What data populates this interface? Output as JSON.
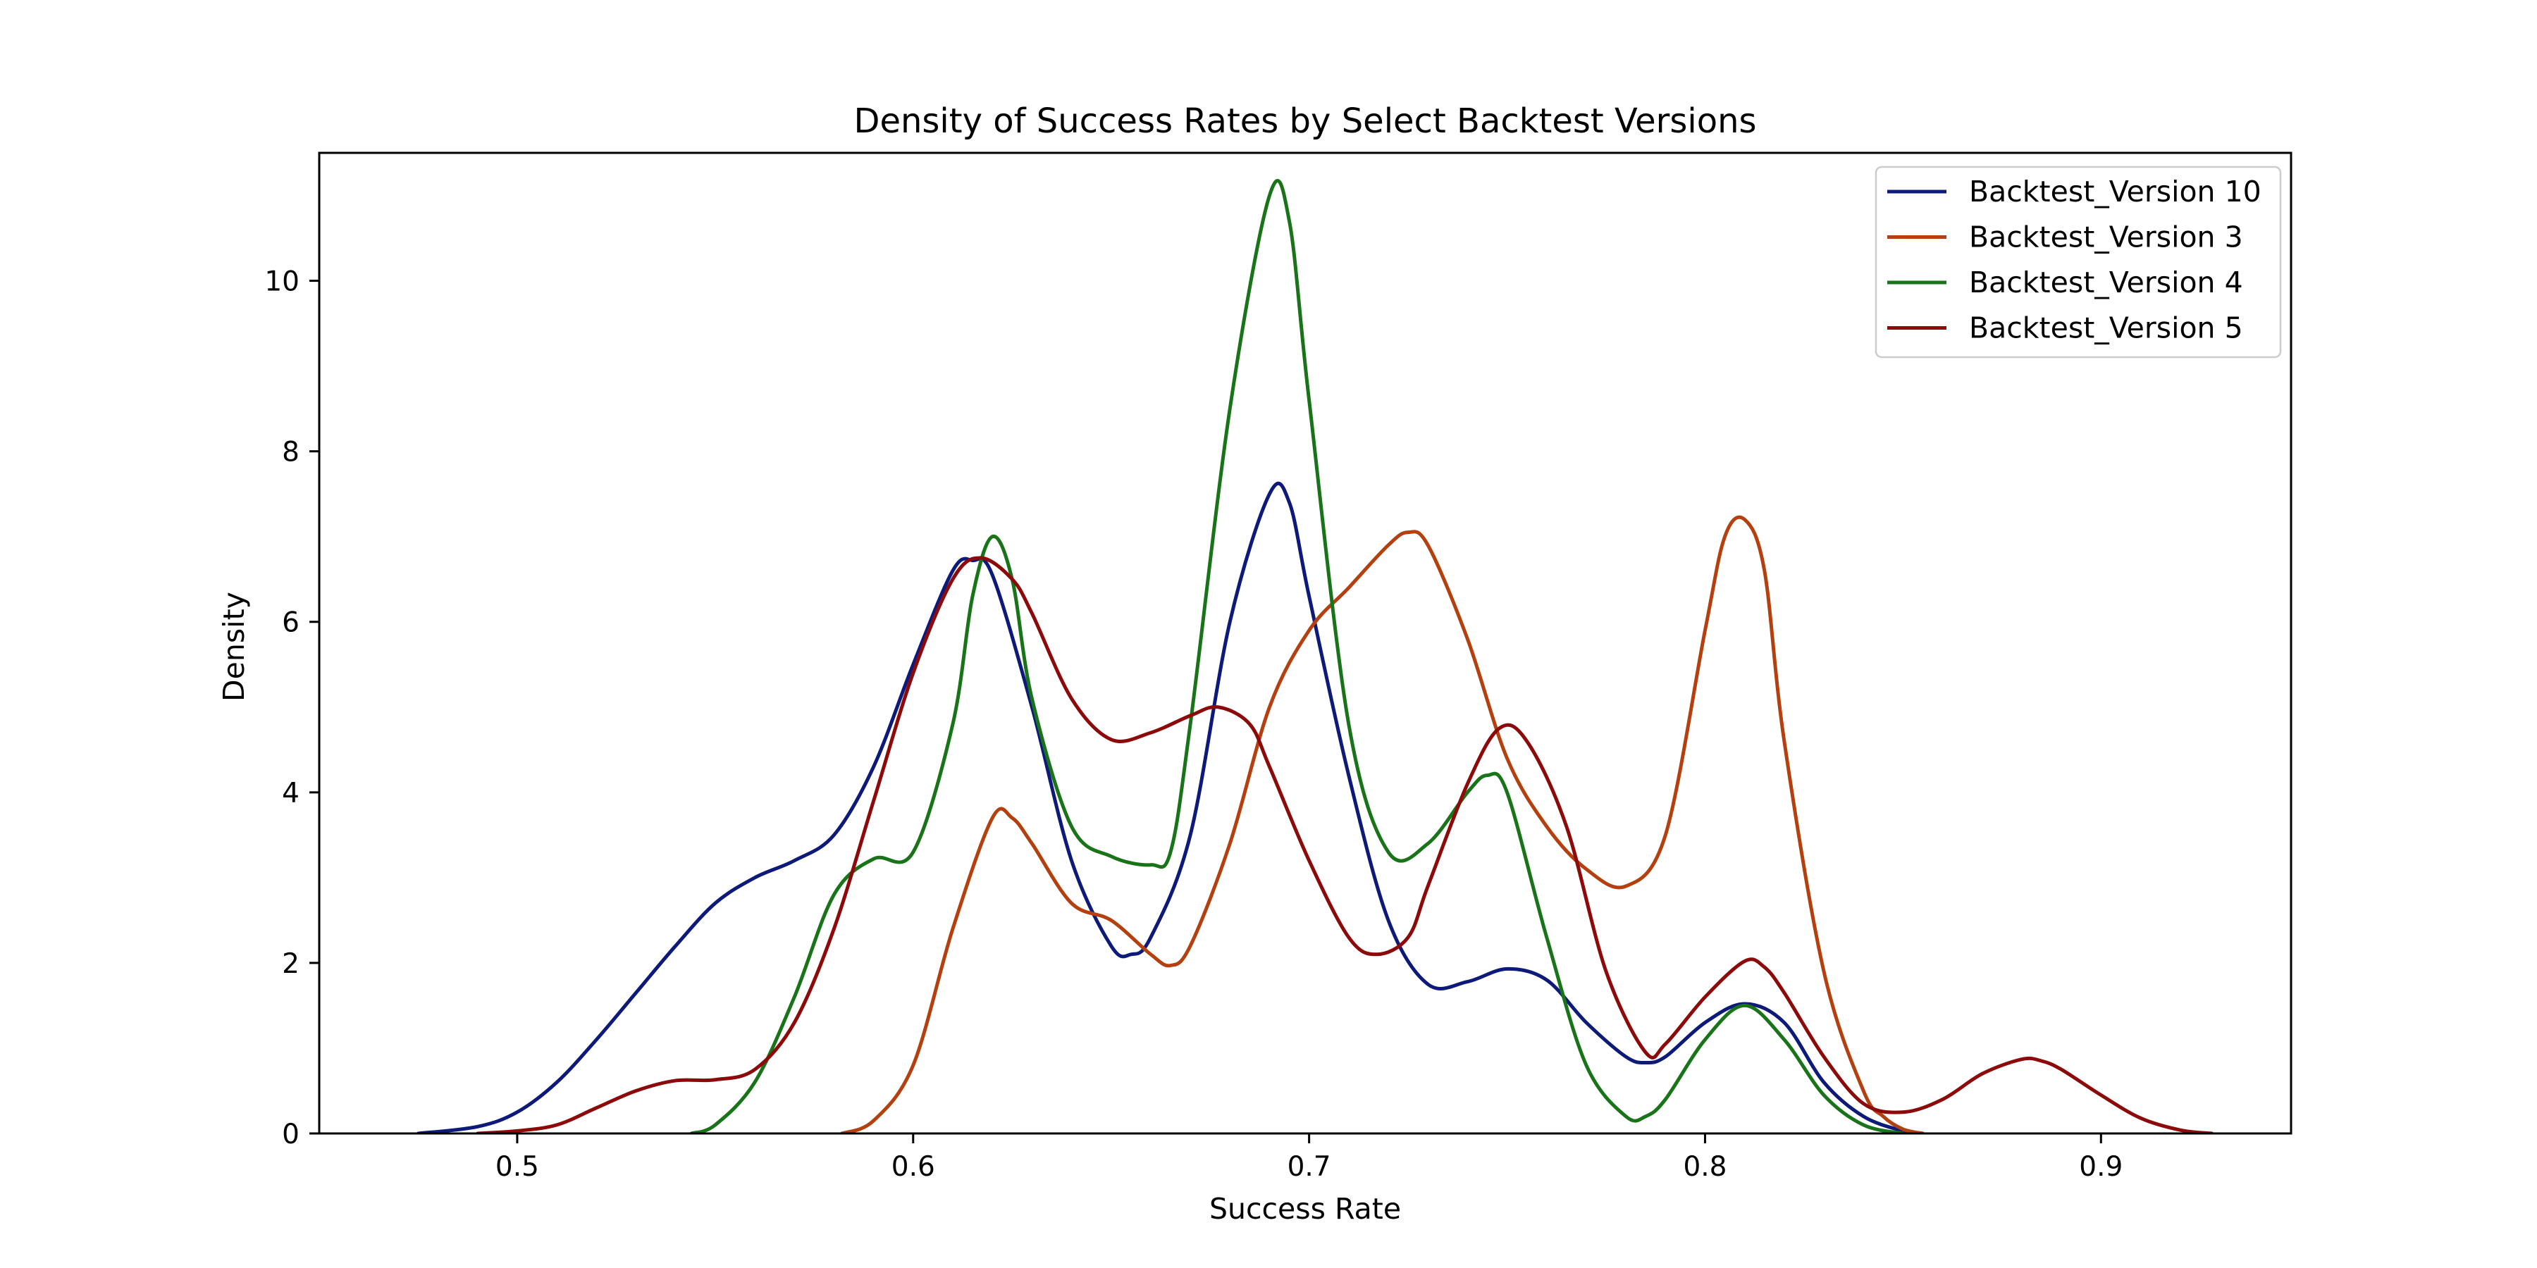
{
  "chart_data": {
    "type": "line",
    "title": "Density of Success Rates by Select Backtest Versions",
    "xlabel": "Success Rate",
    "ylabel": "Density",
    "xlim": [
      0.45,
      0.948
    ],
    "ylim": [
      0,
      11.5
    ],
    "x_ticks": [
      0.5,
      0.6,
      0.7,
      0.8,
      0.9
    ],
    "x_tick_labels": [
      "0.5",
      "0.6",
      "0.7",
      "0.8",
      "0.9"
    ],
    "y_ticks": [
      0,
      2,
      4,
      6,
      8,
      10
    ],
    "y_tick_labels": [
      "0",
      "2",
      "4",
      "6",
      "8",
      "10"
    ],
    "grid": false,
    "legend_position": "top-right",
    "series": [
      {
        "name": "Backtest_Version 10",
        "color": "#0d1a7a",
        "points": [
          [
            0.475,
            0
          ],
          [
            0.49,
            0.08
          ],
          [
            0.5,
            0.25
          ],
          [
            0.51,
            0.6
          ],
          [
            0.52,
            1.1
          ],
          [
            0.53,
            1.65
          ],
          [
            0.54,
            2.2
          ],
          [
            0.55,
            2.7
          ],
          [
            0.56,
            3.0
          ],
          [
            0.57,
            3.2
          ],
          [
            0.58,
            3.5
          ],
          [
            0.59,
            4.3
          ],
          [
            0.6,
            5.5
          ],
          [
            0.61,
            6.6
          ],
          [
            0.615,
            6.72
          ],
          [
            0.62,
            6.55
          ],
          [
            0.63,
            5.0
          ],
          [
            0.64,
            3.2
          ],
          [
            0.65,
            2.2
          ],
          [
            0.655,
            2.1
          ],
          [
            0.66,
            2.3
          ],
          [
            0.67,
            3.5
          ],
          [
            0.68,
            6.0
          ],
          [
            0.69,
            7.5
          ],
          [
            0.695,
            7.4
          ],
          [
            0.7,
            6.3
          ],
          [
            0.71,
            4.2
          ],
          [
            0.72,
            2.5
          ],
          [
            0.73,
            1.75
          ],
          [
            0.74,
            1.78
          ],
          [
            0.75,
            1.93
          ],
          [
            0.76,
            1.8
          ],
          [
            0.77,
            1.3
          ],
          [
            0.78,
            0.9
          ],
          [
            0.785,
            0.83
          ],
          [
            0.79,
            0.9
          ],
          [
            0.8,
            1.3
          ],
          [
            0.81,
            1.52
          ],
          [
            0.82,
            1.3
          ],
          [
            0.83,
            0.6
          ],
          [
            0.84,
            0.2
          ],
          [
            0.85,
            0.03
          ],
          [
            0.855,
            0
          ]
        ]
      },
      {
        "name": "Backtest_Version 3",
        "color": "#b5400f",
        "points": [
          [
            0.582,
            0
          ],
          [
            0.59,
            0.15
          ],
          [
            0.6,
            0.8
          ],
          [
            0.61,
            2.4
          ],
          [
            0.62,
            3.7
          ],
          [
            0.625,
            3.7
          ],
          [
            0.63,
            3.4
          ],
          [
            0.64,
            2.7
          ],
          [
            0.65,
            2.5
          ],
          [
            0.66,
            2.1
          ],
          [
            0.665,
            1.97
          ],
          [
            0.67,
            2.2
          ],
          [
            0.68,
            3.4
          ],
          [
            0.69,
            5.0
          ],
          [
            0.7,
            5.9
          ],
          [
            0.71,
            6.4
          ],
          [
            0.72,
            6.9
          ],
          [
            0.725,
            7.05
          ],
          [
            0.73,
            6.9
          ],
          [
            0.74,
            5.8
          ],
          [
            0.75,
            4.4
          ],
          [
            0.76,
            3.6
          ],
          [
            0.77,
            3.1
          ],
          [
            0.78,
            2.9
          ],
          [
            0.79,
            3.5
          ],
          [
            0.8,
            5.9
          ],
          [
            0.805,
            7.0
          ],
          [
            0.81,
            7.2
          ],
          [
            0.815,
            6.6
          ],
          [
            0.82,
            4.6
          ],
          [
            0.83,
            1.9
          ],
          [
            0.84,
            0.5
          ],
          [
            0.845,
            0.2
          ],
          [
            0.85,
            0.05
          ],
          [
            0.855,
            0
          ]
        ]
      },
      {
        "name": "Backtest_Version 4",
        "color": "#197419",
        "points": [
          [
            0.544,
            0
          ],
          [
            0.55,
            0.1
          ],
          [
            0.56,
            0.6
          ],
          [
            0.57,
            1.6
          ],
          [
            0.58,
            2.8
          ],
          [
            0.59,
            3.22
          ],
          [
            0.6,
            3.3
          ],
          [
            0.61,
            4.8
          ],
          [
            0.615,
            6.3
          ],
          [
            0.62,
            7.0
          ],
          [
            0.625,
            6.5
          ],
          [
            0.63,
            5.1
          ],
          [
            0.64,
            3.6
          ],
          [
            0.65,
            3.25
          ],
          [
            0.66,
            3.15
          ],
          [
            0.665,
            3.3
          ],
          [
            0.67,
            4.8
          ],
          [
            0.68,
            8.5
          ],
          [
            0.69,
            11.0
          ],
          [
            0.695,
            10.7
          ],
          [
            0.7,
            8.6
          ],
          [
            0.71,
            4.8
          ],
          [
            0.72,
            3.3
          ],
          [
            0.73,
            3.4
          ],
          [
            0.74,
            4.0
          ],
          [
            0.745,
            4.2
          ],
          [
            0.75,
            4.0
          ],
          [
            0.76,
            2.3
          ],
          [
            0.77,
            0.8
          ],
          [
            0.78,
            0.2
          ],
          [
            0.785,
            0.2
          ],
          [
            0.79,
            0.4
          ],
          [
            0.8,
            1.1
          ],
          [
            0.81,
            1.5
          ],
          [
            0.82,
            1.1
          ],
          [
            0.83,
            0.45
          ],
          [
            0.84,
            0.1
          ],
          [
            0.85,
            0
          ]
        ]
      },
      {
        "name": "Backtest_Version 5",
        "color": "#8c0a0a",
        "points": [
          [
            0.49,
            0
          ],
          [
            0.5,
            0.03
          ],
          [
            0.51,
            0.1
          ],
          [
            0.52,
            0.3
          ],
          [
            0.53,
            0.5
          ],
          [
            0.54,
            0.62
          ],
          [
            0.55,
            0.63
          ],
          [
            0.56,
            0.75
          ],
          [
            0.57,
            1.3
          ],
          [
            0.58,
            2.4
          ],
          [
            0.59,
            3.9
          ],
          [
            0.6,
            5.4
          ],
          [
            0.61,
            6.5
          ],
          [
            0.617,
            6.75
          ],
          [
            0.625,
            6.5
          ],
          [
            0.63,
            6.1
          ],
          [
            0.64,
            5.1
          ],
          [
            0.65,
            4.62
          ],
          [
            0.66,
            4.7
          ],
          [
            0.67,
            4.9
          ],
          [
            0.677,
            5.0
          ],
          [
            0.685,
            4.8
          ],
          [
            0.69,
            4.3
          ],
          [
            0.7,
            3.2
          ],
          [
            0.71,
            2.3
          ],
          [
            0.717,
            2.1
          ],
          [
            0.725,
            2.3
          ],
          [
            0.73,
            2.9
          ],
          [
            0.74,
            4.1
          ],
          [
            0.748,
            4.75
          ],
          [
            0.755,
            4.6
          ],
          [
            0.765,
            3.6
          ],
          [
            0.775,
            1.9
          ],
          [
            0.785,
            0.95
          ],
          [
            0.79,
            1.05
          ],
          [
            0.8,
            1.6
          ],
          [
            0.81,
            2.02
          ],
          [
            0.815,
            1.95
          ],
          [
            0.82,
            1.65
          ],
          [
            0.83,
            0.9
          ],
          [
            0.84,
            0.35
          ],
          [
            0.85,
            0.25
          ],
          [
            0.86,
            0.4
          ],
          [
            0.87,
            0.7
          ],
          [
            0.88,
            0.87
          ],
          [
            0.885,
            0.85
          ],
          [
            0.89,
            0.75
          ],
          [
            0.9,
            0.45
          ],
          [
            0.91,
            0.18
          ],
          [
            0.92,
            0.04
          ],
          [
            0.928,
            0
          ]
        ]
      }
    ]
  }
}
